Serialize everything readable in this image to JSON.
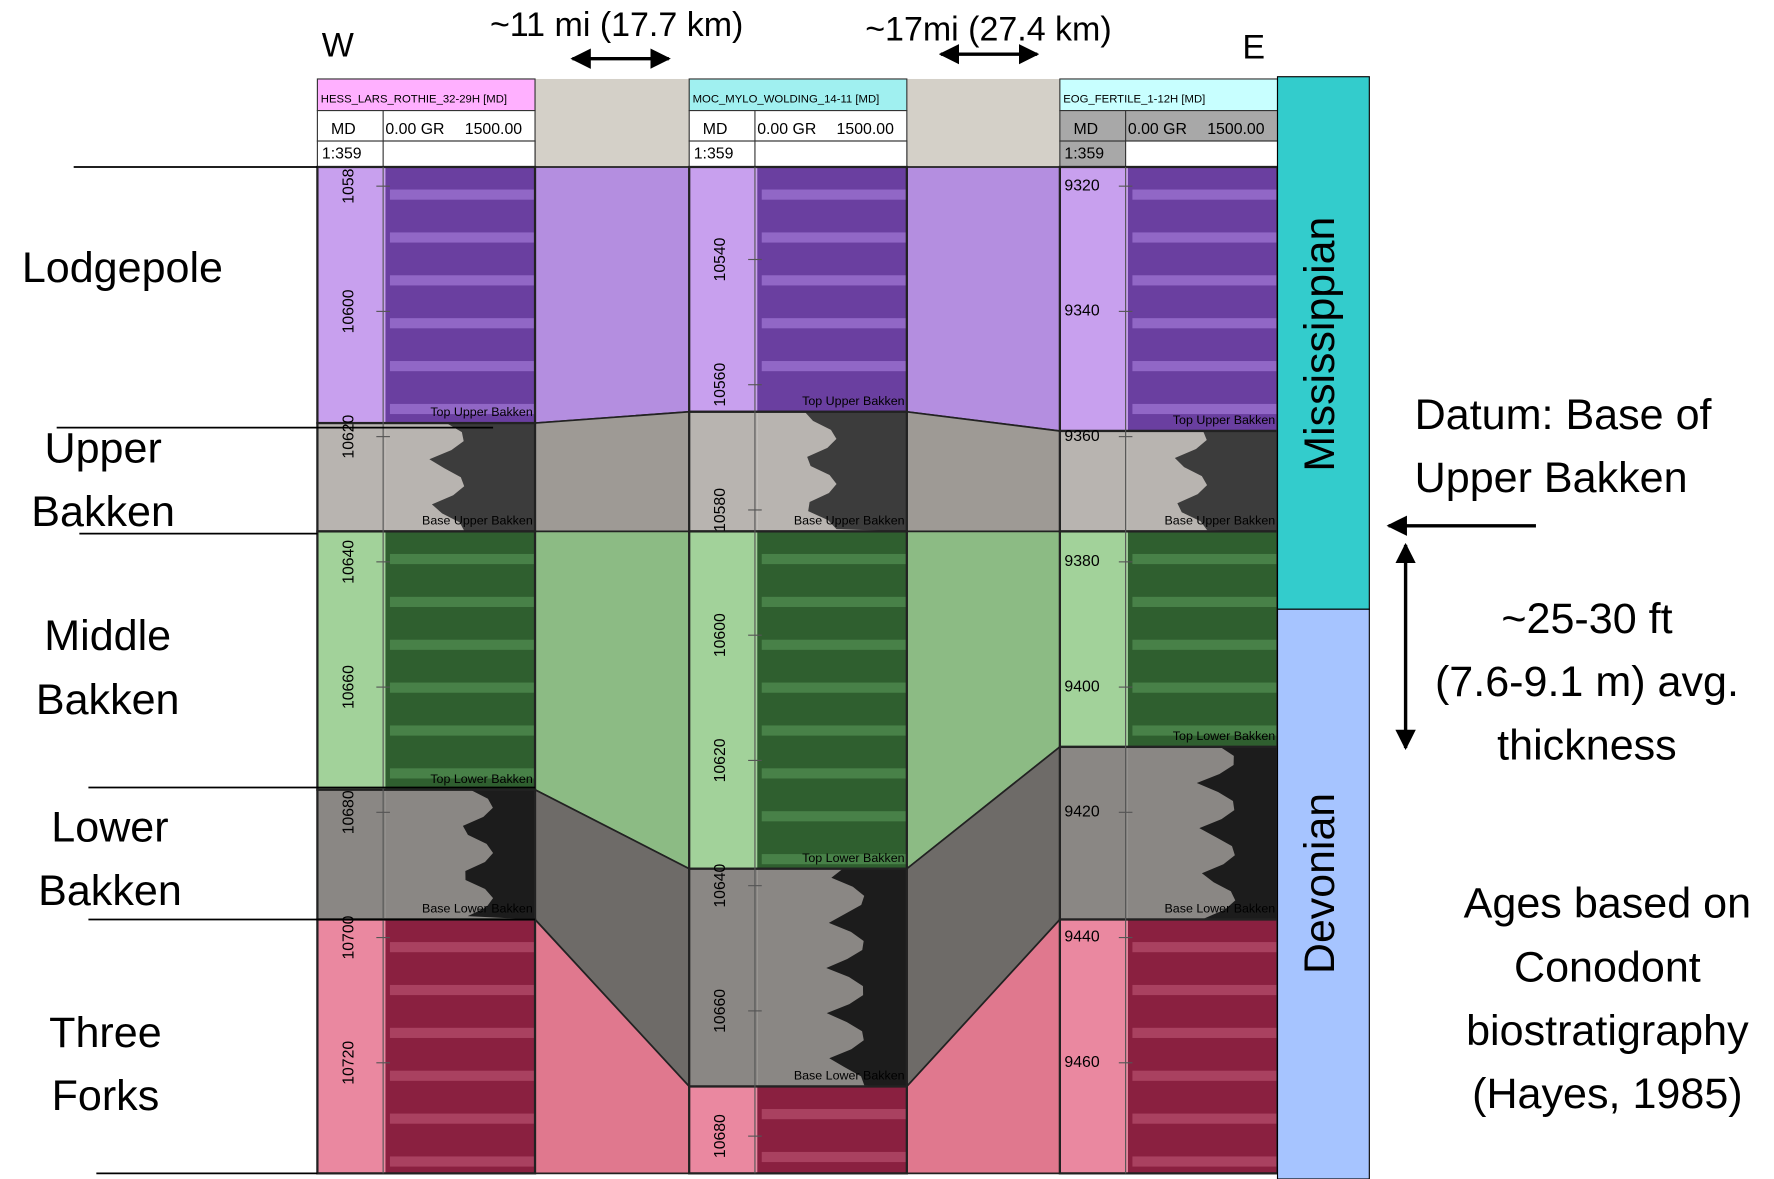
{
  "header": {
    "west": "W",
    "east": "E",
    "spacing_1": "~11 mi (17.7 km)",
    "spacing_2": "~17mi (27.4 km)"
  },
  "formations": [
    {
      "lines": [
        "Lodgepole"
      ]
    },
    {
      "lines": [
        "Upper",
        "Bakken"
      ]
    },
    {
      "lines": [
        "Middle",
        "Bakken"
      ]
    },
    {
      "lines": [
        "Lower",
        "Bakken"
      ]
    },
    {
      "lines": [
        "Three",
        "Forks"
      ]
    }
  ],
  "wells": [
    {
      "name": "HESS_LARS_ROTHIE_32-29H [MD]",
      "columns": [
        "MD",
        "0.00 GR",
        "1500.00"
      ],
      "scale": "1:359",
      "depths": [
        "1058",
        "10600",
        "10620",
        "10640",
        "10660",
        "10680",
        "10700",
        "10720"
      ],
      "tops": [
        "Top Upper Bakken",
        "Base Upper Bakken",
        "Top Lower Bakken",
        "Base Lower Bakken"
      ]
    },
    {
      "name": "MOC_MYLO_WOLDING_14-11 [MD]",
      "columns": [
        "MD",
        "0.00 GR",
        "1500.00"
      ],
      "scale": "1:359",
      "depths": [
        "10540",
        "10560",
        "10580",
        "10600",
        "10620",
        "10640",
        "10660",
        "10680"
      ],
      "tops": [
        "Top Upper Bakken",
        "Base Upper Bakken",
        "Top Lower Bakken",
        "Base Lower Bakken"
      ]
    },
    {
      "name": "EOG_FERTILE_1-12H [MD]",
      "columns": [
        "MD",
        "0.00 GR",
        "1500.00"
      ],
      "scale": "1:359",
      "depths": [
        "9320",
        "9340",
        "9360",
        "9380",
        "9400",
        "9420",
        "9440",
        "9460"
      ],
      "tops": [
        "Top Upper Bakken",
        "Base Upper Bakken",
        "Top Lower Bakken",
        "Base Lower Bakken"
      ]
    }
  ],
  "periods": [
    "Mississippian",
    "Devonian"
  ],
  "notes": {
    "datum": [
      "Datum: Base of",
      "Upper Bakken"
    ],
    "thickness": [
      "~25-30 ft",
      "(7.6-9.1 m) avg.",
      "thickness"
    ],
    "ages": [
      "Ages based on",
      "Conodont",
      "biostratigraphy",
      "(Hayes, 1985)"
    ]
  }
}
